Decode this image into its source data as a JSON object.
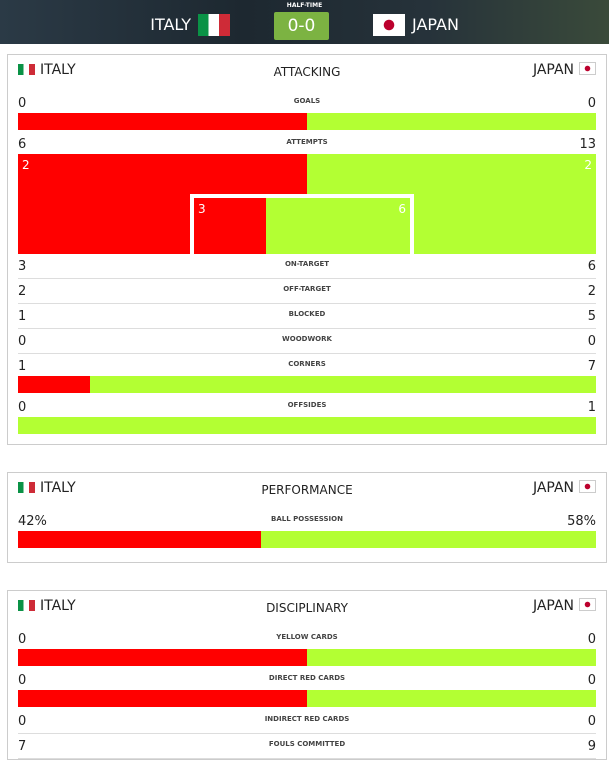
{
  "header": {
    "status": "HALF-TIME",
    "home": "ITALY",
    "score": "0-0",
    "away": "JAPAN"
  },
  "colors": {
    "home": "#ff0000",
    "away": "#b3ff33"
  },
  "sections": [
    {
      "home": "ITALY",
      "title": "ATTACKING",
      "away": "JAPAN",
      "stats": [
        {
          "label": "GOALS",
          "home": 0,
          "away": 0,
          "bar": true
        },
        {
          "label": "ATTEMPTS",
          "home": 6,
          "away": 13,
          "bar_style": "goal-frame"
        },
        {
          "label": "ON-TARGET",
          "home": 3,
          "away": 6
        },
        {
          "label": "OFF-TARGET",
          "home": 2,
          "away": 2
        },
        {
          "label": "BLOCKED",
          "home": 1,
          "away": 5
        },
        {
          "label": "WOODWORK",
          "home": 0,
          "away": 0
        },
        {
          "label": "CORNERS",
          "home": 1,
          "away": 7,
          "bar": true
        },
        {
          "label": "OFFSIDES",
          "home": 0,
          "away": 1,
          "bar": true
        }
      ]
    },
    {
      "home": "ITALY",
      "title": "PERFORMANCE",
      "away": "JAPAN",
      "stats": [
        {
          "label": "BALL POSSESSION",
          "home": 42,
          "away": 58,
          "home_label": "42%",
          "away_label": "58%",
          "bar": true
        }
      ]
    },
    {
      "home": "ITALY",
      "title": "DISCIPLINARY",
      "away": "JAPAN",
      "stats": [
        {
          "label": "YELLOW CARDS",
          "home": 0,
          "away": 0,
          "bar": true
        },
        {
          "label": "DIRECT RED CARDS",
          "home": 0,
          "away": 0,
          "bar": true
        },
        {
          "label": "INDIRECT RED CARDS",
          "home": 0,
          "away": 0
        },
        {
          "label": "FOULS COMMITTED",
          "home": 7,
          "away": 9
        }
      ]
    }
  ]
}
